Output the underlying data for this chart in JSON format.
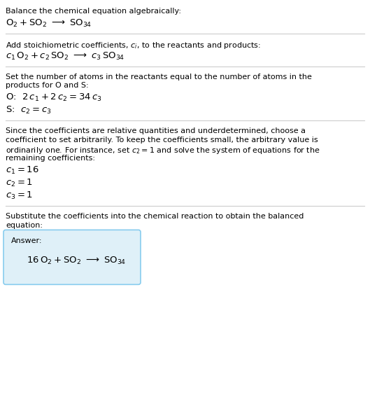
{
  "bg_color": "#ffffff",
  "text_color": "#000000",
  "line_color": "#cccccc",
  "box_color": "#dff0f8",
  "box_edge_color": "#88ccee",
  "fs_body": 8.0,
  "fs_eq": 9.5,
  "sections": [
    {
      "type": "text",
      "content": "Balance the chemical equation algebraically:"
    },
    {
      "type": "mathline",
      "content": "$\\mathrm{O_2 + SO_2\\ \\longrightarrow\\ SO_{34}}$"
    },
    {
      "type": "hline"
    },
    {
      "type": "text",
      "content": "Add stoichiometric coefficients, $c_i$, to the reactants and products:"
    },
    {
      "type": "mathline",
      "content": "$c_1\\,\\mathrm{O_2} + c_2\\,\\mathrm{SO_2}\\ \\longrightarrow\\ c_3\\,\\mathrm{SO_{34}}$"
    },
    {
      "type": "hline"
    },
    {
      "type": "text",
      "content": "Set the number of atoms in the reactants equal to the number of atoms in the\nproducts for O and S:"
    },
    {
      "type": "mathline",
      "content": "O:  $2\\,c_1 + 2\\,c_2 = 34\\,c_3$"
    },
    {
      "type": "mathline",
      "content": "S:  $c_2 = c_3$"
    },
    {
      "type": "hline"
    },
    {
      "type": "text",
      "content": "Since the coefficients are relative quantities and underdetermined, choose a\ncoefficient to set arbitrarily. To keep the coefficients small, the arbitrary value is\nordinarily one. For instance, set $c_2 = 1$ and solve the system of equations for the\nremaining coefficients:"
    },
    {
      "type": "mathline",
      "content": "$c_1 = 16$"
    },
    {
      "type": "mathline",
      "content": "$c_2 = 1$"
    },
    {
      "type": "mathline",
      "content": "$c_3 = 1$"
    },
    {
      "type": "hline"
    },
    {
      "type": "text",
      "content": "Substitute the coefficients into the chemical reaction to obtain the balanced\nequation:"
    },
    {
      "type": "answerbox",
      "label": "Answer:",
      "eq": "$16\\,\\mathrm{O_2 + SO_2\\ \\longrightarrow\\ SO_{34}}$"
    }
  ]
}
